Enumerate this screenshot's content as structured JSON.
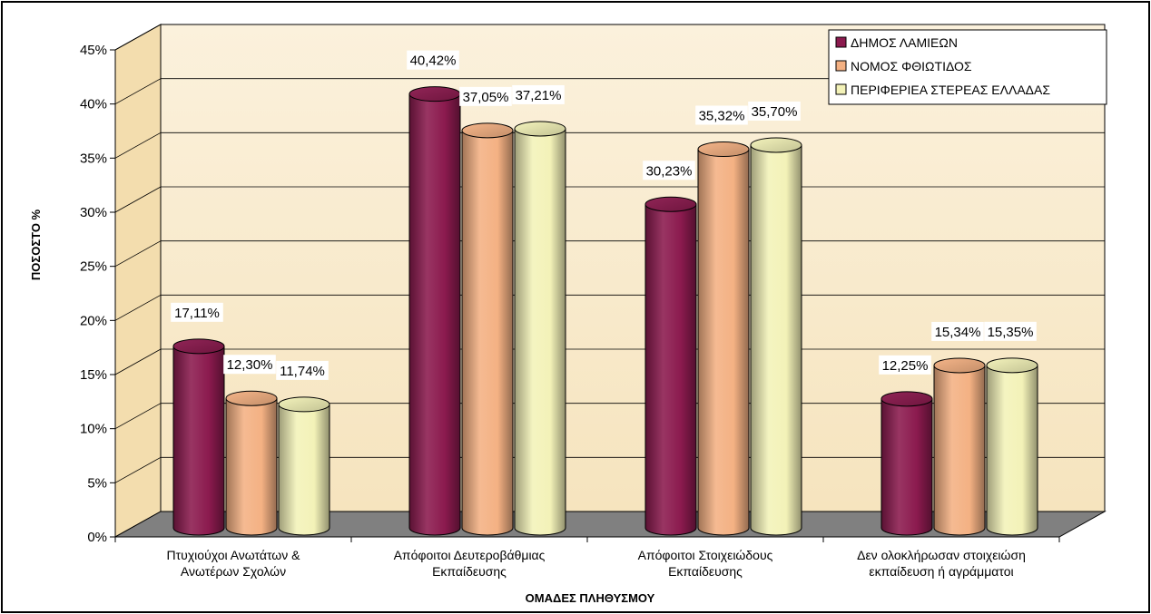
{
  "chart_data": {
    "type": "bar",
    "xlabel": "ΟΜΑΔΕΣ ΠΛΗΘΥΣΜΟΥ",
    "ylabel": "ΠΟΣΟΣΤΟ %",
    "ylim": [
      0,
      45
    ],
    "y_ticks": [
      "0%",
      "5%",
      "10%",
      "15%",
      "20%",
      "25%",
      "30%",
      "35%",
      "40%",
      "45%"
    ],
    "categories": [
      [
        "Πτυχιούχοι Ανωτάτων &",
        "Ανωτέρων Σχολών"
      ],
      [
        "Απόφοιτοι Δευτεροβάθμιας",
        "Εκπαίδευσης"
      ],
      [
        "Απόφοιτοι Στοιχειώδους",
        "Εκπαίδευσης"
      ],
      [
        "Δεν ολοκλήρωσαν στοιχειώση",
        "εκπαίδευση ή αγράμματοι"
      ]
    ],
    "series": [
      {
        "name": "ΔΗΜΟΣ ΛΑΜΙΕΩΝ",
        "color": "#8B1A4E",
        "values": [
          17.11,
          40.42,
          30.23,
          12.25
        ],
        "labels": [
          "17,11%",
          "40,42%",
          "30,23%",
          "12,25%"
        ]
      },
      {
        "name": "ΝΟΜΟΣ ΦΘΙΩΤΙΔΟΣ",
        "color": "#F4B183",
        "values": [
          12.3,
          37.05,
          35.32,
          15.34
        ],
        "labels": [
          "12,30%",
          "37,05%",
          "35,32%",
          "15,34%"
        ]
      },
      {
        "name": "ΠΕΡΙΦΕΡΙΕΑ ΣΤΕΡΕΑΣ ΕΛΛΑΔΑΣ",
        "color": "#F3F2B8",
        "values": [
          11.74,
          37.21,
          35.7,
          15.35
        ],
        "labels": [
          "11,74%",
          "37,21%",
          "35,70%",
          "15,35%"
        ]
      }
    ],
    "grid": true,
    "legend_position": "top-right"
  }
}
